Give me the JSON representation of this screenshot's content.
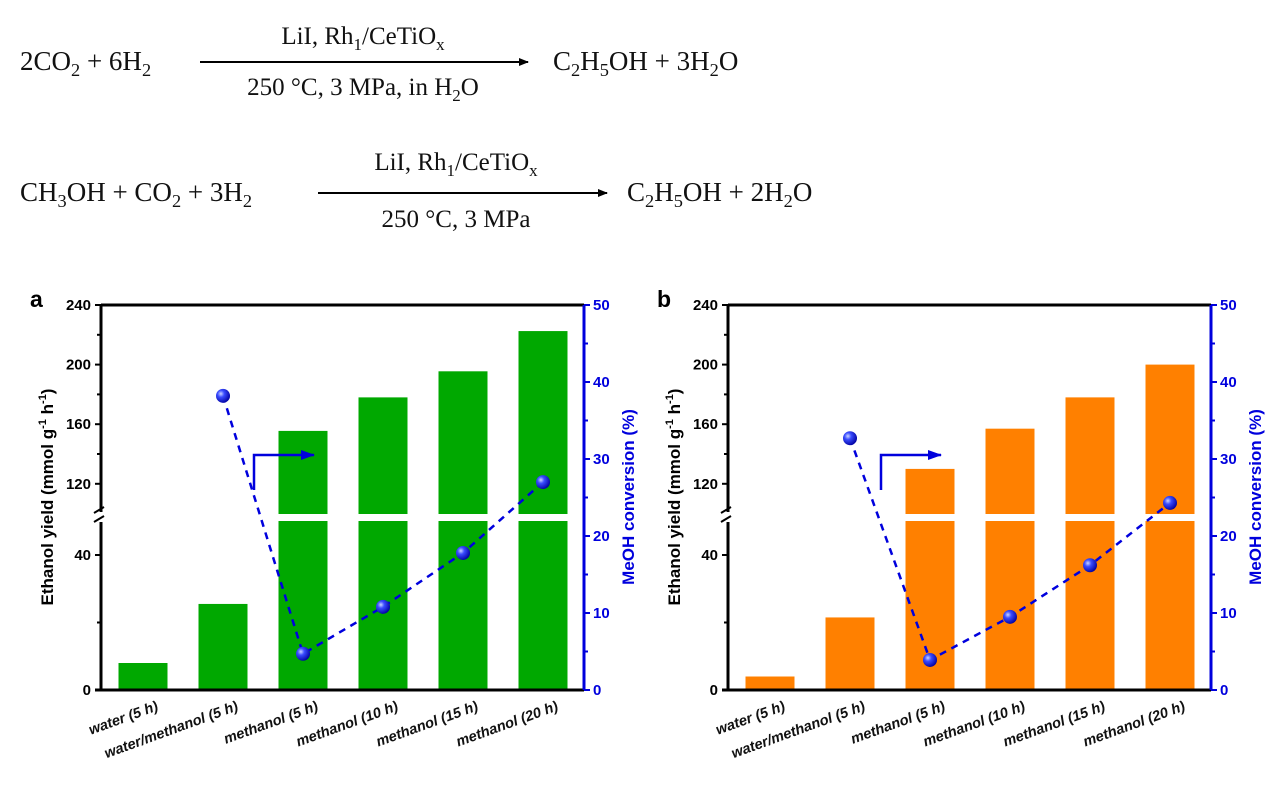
{
  "equations": [
    {
      "reactants": "2CO2 + 6H2",
      "catalyst": "LiI, Rh1/CeTiOx",
      "conditions": "250 °C, 3 MPa, in H2O",
      "products": "C2H5OH + 3H2O"
    },
    {
      "reactants": "CH3OH + CO2 + 3H2",
      "catalyst": "LiI, Rh1/CeTiOx",
      "conditions": "250 °C, 3 MPa",
      "products": "C2H5OH + 2H2O"
    }
  ],
  "colors": {
    "series_a": "#00a800",
    "series_b": "#ff8000",
    "conversion": "#0000dd",
    "axis": "#000000"
  },
  "chart_data": [
    {
      "panel": "a",
      "type": "bar",
      "categories": [
        "water (5 h)",
        "water/methanol (5 h)",
        "methanol (5 h)",
        "methanol (10 h)",
        "methanol (15 h)",
        "methanol (20 h)"
      ],
      "series": [
        {
          "name": "Ethanol yield",
          "axis": "left",
          "type": "bar",
          "values": [
            8,
            25.5,
            155.5,
            178,
            195.5,
            222.5
          ]
        },
        {
          "name": "MeOH conversion",
          "axis": "right",
          "type": "line-dashed-markers",
          "values": [
            null,
            38.2,
            4.7,
            10.8,
            17.8,
            27.0
          ]
        }
      ],
      "ylabel_left": {
        "main": "Ethanol yield (mmol g",
        "sup1": "-1",
        "mid": " h",
        "sup2": "-1",
        "end": ")"
      },
      "ylabel_right": "MeOH conversion (%)",
      "ylim_left": [
        0,
        240
      ],
      "y_break": [
        50,
        98
      ],
      "yticks_left": [
        "0",
        "40",
        "120",
        "160",
        "200",
        "240"
      ],
      "ylim_right": [
        0,
        50
      ],
      "yticks_right": [
        "0",
        "10",
        "20",
        "30",
        "40",
        "50"
      ],
      "annotation": "arrow pointing to right axis"
    },
    {
      "panel": "b",
      "type": "bar",
      "categories": [
        "water (5 h)",
        "water/methanol (5 h)",
        "methanol (5 h)",
        "methanol (10 h)",
        "methanol (15 h)",
        "methanol (20 h)"
      ],
      "series": [
        {
          "name": "Ethanol yield",
          "axis": "left",
          "type": "bar",
          "values": [
            4,
            21.5,
            130,
            157,
            178,
            200
          ]
        },
        {
          "name": "MeOH conversion",
          "axis": "right",
          "type": "line-dashed-markers",
          "values": [
            null,
            32.7,
            3.9,
            9.5,
            16.2,
            24.3
          ]
        }
      ],
      "ylabel_left": {
        "main": "Ethanol yield (mmol g",
        "sup1": "-1",
        "mid": " h",
        "sup2": "-1",
        "end": ")"
      },
      "ylabel_right": "MeOH conversion (%)",
      "ylim_left": [
        0,
        240
      ],
      "y_break": [
        50,
        98
      ],
      "yticks_left": [
        "0",
        "40",
        "120",
        "160",
        "200",
        "240"
      ],
      "ylim_right": [
        0,
        50
      ],
      "yticks_right": [
        "0",
        "10",
        "20",
        "30",
        "40",
        "50"
      ],
      "annotation": "arrow pointing to right axis"
    }
  ]
}
